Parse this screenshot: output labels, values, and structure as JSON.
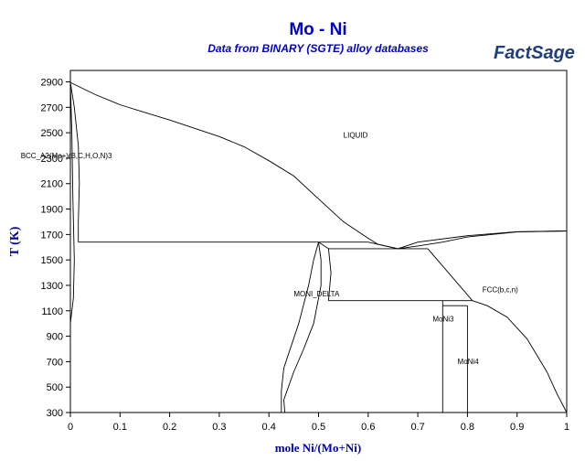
{
  "chart_data": {
    "type": "line",
    "title": "Mo - Ni",
    "subtitle": "Data from BINARY (SGTE) alloy databases",
    "logo": "FactSage",
    "xlabel": "mole Ni/(Mo+Ni)",
    "ylabel": "T (K)",
    "xlim": [
      0,
      1
    ],
    "ylim": [
      300,
      2990
    ],
    "x_ticks": [
      "0",
      "0.1",
      "0.2",
      "0.3",
      "0.4",
      "0.5",
      "0.6",
      "0.7",
      "0.8",
      "0.9",
      "1"
    ],
    "x_tick_values": [
      0,
      0.1,
      0.2,
      0.3,
      0.4,
      0.5,
      0.6,
      0.7,
      0.8,
      0.9,
      1.0
    ],
    "y_ticks": [
      "2900",
      "2700",
      "2500",
      "2300",
      "2100",
      "1900",
      "1700",
      "1500",
      "1300",
      "1100",
      "900",
      "700",
      "500",
      "300"
    ],
    "y_tick_values": [
      2900,
      2700,
      2500,
      2300,
      2100,
      1900,
      1700,
      1500,
      1300,
      1100,
      900,
      700,
      500,
      300
    ],
    "grid": false,
    "phase_labels": [
      {
        "text": "LIQUID",
        "x": 0.55,
        "y": 2460
      },
      {
        "text": "BCC_A2(Mo+)(B,C,H,O,N)3",
        "x": -0.1,
        "y": 2300
      },
      {
        "text": "MONI_DELTA",
        "x": 0.45,
        "y": 1215
      },
      {
        "text": "FCC(b,c,n)",
        "x": 0.83,
        "y": 1245
      },
      {
        "text": "MoNi3",
        "x": 0.73,
        "y": 1015
      },
      {
        "text": "MoNi4",
        "x": 0.78,
        "y": 680
      }
    ],
    "series": [
      {
        "points": [
          [
            0,
            2896
          ],
          [
            0.05,
            2800
          ],
          [
            0.1,
            2720
          ],
          [
            0.15,
            2660
          ],
          [
            0.2,
            2600
          ],
          [
            0.3,
            2470
          ],
          [
            0.35,
            2390
          ],
          [
            0.4,
            2280
          ],
          [
            0.45,
            2160
          ],
          [
            0.5,
            1980
          ],
          [
            0.55,
            1800
          ],
          [
            0.6,
            1670
          ],
          [
            0.62,
            1622
          ],
          [
            0.66,
            1588
          ]
        ]
      },
      {
        "points": [
          [
            0,
            2896
          ],
          [
            0.008,
            2700
          ],
          [
            0.016,
            2400
          ],
          [
            0.018,
            2100
          ],
          [
            0.016,
            1800
          ],
          [
            0.016,
            1640
          ]
        ]
      },
      {
        "points": [
          [
            0,
            2896
          ],
          [
            0.003,
            2500
          ],
          [
            0.005,
            2000
          ],
          [
            0.008,
            1500
          ],
          [
            0.006,
            1200
          ],
          [
            0,
            1000
          ]
        ]
      },
      {
        "points": [
          [
            0.016,
            1640
          ],
          [
            0.5,
            1640
          ]
        ]
      },
      {
        "points": [
          [
            0.5,
            1640
          ],
          [
            0.6,
            1640
          ],
          [
            0.66,
            1588
          ]
        ]
      },
      {
        "points": [
          [
            0.66,
            1588
          ],
          [
            0.7,
            1640
          ],
          [
            0.8,
            1690
          ],
          [
            0.9,
            1722
          ],
          [
            1,
            1728
          ]
        ]
      },
      {
        "points": [
          [
            0.66,
            1588
          ],
          [
            0.7,
            1610
          ],
          [
            0.75,
            1640
          ],
          [
            0.8,
            1680
          ],
          [
            0.9,
            1720
          ],
          [
            1,
            1728
          ]
        ]
      },
      {
        "points": [
          [
            0.52,
            1588
          ],
          [
            0.72,
            1588
          ]
        ]
      },
      {
        "points": [
          [
            0.72,
            1588
          ],
          [
            0.81,
            1180
          ]
        ]
      },
      {
        "points": [
          [
            0.81,
            1180
          ],
          [
            0.84,
            1140
          ],
          [
            0.88,
            1050
          ],
          [
            0.92,
            880
          ],
          [
            0.96,
            620
          ],
          [
            0.98,
            450
          ],
          [
            1,
            300
          ]
        ]
      },
      {
        "points": [
          [
            0.52,
            1180
          ],
          [
            0.81,
            1180
          ]
        ]
      },
      {
        "points": [
          [
            0.5,
            1640
          ],
          [
            0.49,
            1500
          ],
          [
            0.48,
            1300
          ],
          [
            0.46,
            1000
          ],
          [
            0.43,
            650
          ],
          [
            0.425,
            470
          ],
          [
            0.425,
            300
          ]
        ]
      },
      {
        "points": [
          [
            0.5,
            1640
          ],
          [
            0.505,
            1500
          ],
          [
            0.505,
            1300
          ],
          [
            0.49,
            1000
          ],
          [
            0.47,
            800
          ],
          [
            0.45,
            620
          ],
          [
            0.43,
            400
          ],
          [
            0.432,
            300
          ]
        ]
      },
      {
        "points": [
          [
            0.5,
            1640
          ],
          [
            0.52,
            1588
          ],
          [
            0.525,
            1400
          ],
          [
            0.52,
            1180
          ]
        ]
      },
      {
        "points": [
          [
            0.75,
            1180
          ],
          [
            0.75,
            300
          ]
        ]
      },
      {
        "points": [
          [
            0.75,
            1140
          ],
          [
            0.8,
            1140
          ]
        ]
      },
      {
        "points": [
          [
            0.8,
            1140
          ],
          [
            0.8,
            300
          ]
        ]
      },
      {
        "points": [
          [
            0.75,
            300
          ],
          [
            1,
            300
          ]
        ]
      }
    ]
  }
}
